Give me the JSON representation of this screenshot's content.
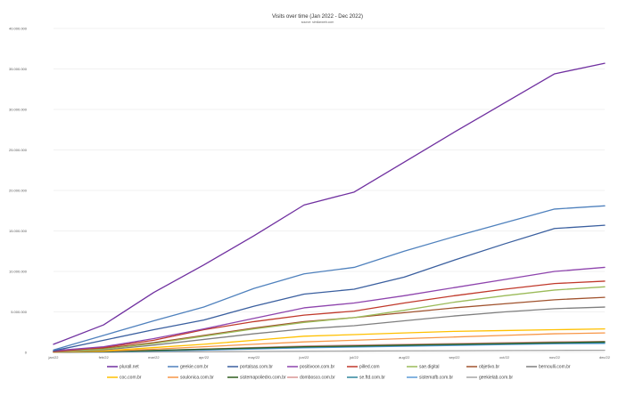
{
  "chart_data": {
    "type": "line",
    "title": "Visits over time (Jan 2022 - Dec 2022)",
    "subtitle": "source: similarweb.com",
    "xlabel": "",
    "ylabel": "",
    "ylim": [
      0,
      40000000
    ],
    "grid": true,
    "legend_position": "bottom",
    "y_ticks": [
      "0",
      "5.000.000",
      "10.000.000",
      "15.000.000",
      "20.000.000",
      "25.000.000",
      "30.000.000",
      "35.000.000",
      "40.000.000"
    ],
    "categories": [
      "jan/22",
      "feb/22",
      "mar/22",
      "apr/22",
      "may/22",
      "jun/22",
      "jul/22",
      "aug/22",
      "sep/22",
      "oct/22",
      "nov/22",
      "dec/22"
    ],
    "series": [
      {
        "name": "plurall.net",
        "color": "#7030a0",
        "values": [
          1000000,
          3400000,
          7400000,
          10800000,
          14400000,
          18200000,
          19800000,
          23500000,
          27200000,
          30800000,
          34400000,
          35700000
        ]
      },
      {
        "name": "geekie.com.br",
        "color": "#4f81bd",
        "values": [
          300000,
          2100000,
          3900000,
          5600000,
          7900000,
          9700000,
          10500000,
          12500000,
          14300000,
          16000000,
          17700000,
          18100000
        ]
      },
      {
        "name": "portalsas.com.br",
        "color": "#3a5f9f",
        "values": [
          200000,
          1500000,
          2800000,
          4000000,
          5700000,
          7200000,
          7800000,
          9300000,
          11400000,
          13400000,
          15300000,
          15700000
        ]
      },
      {
        "name": "positivoon.com.br",
        "color": "#8e44ad",
        "values": [
          200000,
          700000,
          1700000,
          2900000,
          4200000,
          5500000,
          6100000,
          7000000,
          8000000,
          9000000,
          10000000,
          10500000
        ]
      },
      {
        "name": "pilled.com",
        "color": "#c0392b",
        "values": [
          100000,
          600000,
          1500000,
          2800000,
          3800000,
          4600000,
          5100000,
          6100000,
          7000000,
          7800000,
          8500000,
          8800000
        ]
      },
      {
        "name": "sae.digital",
        "color": "#9bbb59",
        "values": [
          100000,
          400000,
          1100000,
          2000000,
          2900000,
          3700000,
          4300000,
          5200000,
          6200000,
          7000000,
          7700000,
          8100000
        ]
      },
      {
        "name": "objetivo.br",
        "color": "#a0522d",
        "values": [
          100000,
          500000,
          1200000,
          2100000,
          3000000,
          3800000,
          4300000,
          4900000,
          5500000,
          6000000,
          6500000,
          6800000
        ]
      },
      {
        "name": "bernoulli.com.br",
        "color": "#7f7f7f",
        "values": [
          50000,
          300000,
          900000,
          1600000,
          2300000,
          2900000,
          3300000,
          3900000,
          4500000,
          5000000,
          5400000,
          5600000
        ]
      },
      {
        "name": "coc.com.br",
        "color": "#ffc000",
        "values": [
          50000,
          200000,
          600000,
          1000000,
          1500000,
          2000000,
          2200000,
          2400000,
          2600000,
          2700000,
          2800000,
          2900000
        ]
      },
      {
        "name": "soulonica.com.br",
        "color": "#f79646",
        "values": [
          30000,
          150000,
          400000,
          700000,
          1000000,
          1300000,
          1500000,
          1700000,
          1900000,
          2100000,
          2300000,
          2400000
        ]
      },
      {
        "name": "sistemapoliedro.com.br",
        "color": "#2e5c1e",
        "values": [
          20000,
          100000,
          250000,
          400000,
          550000,
          700000,
          800000,
          900000,
          1000000,
          1100000,
          1200000,
          1300000
        ]
      },
      {
        "name": "dombosco.com.br",
        "color": "#d99694",
        "values": [
          20000,
          100000,
          250000,
          400000,
          600000,
          800000,
          900000,
          1000000,
          1100000,
          1200000,
          1300000,
          1350000
        ]
      },
      {
        "name": "se.ftd.com.br",
        "color": "#31859c",
        "values": [
          20000,
          80000,
          200000,
          350000,
          500000,
          650000,
          750000,
          850000,
          950000,
          1050000,
          1150000,
          1200000
        ]
      },
      {
        "name": "sistemafb.com.br",
        "color": "#5b9bd5",
        "values": [
          15000,
          60000,
          150000,
          280000,
          420000,
          560000,
          660000,
          760000,
          860000,
          960000,
          1060000,
          1100000
        ]
      },
      {
        "name": "geekielab.com.br",
        "color": "#a5a5a5",
        "values": [
          10000,
          30000,
          60000,
          90000,
          120000,
          150000,
          170000,
          190000,
          210000,
          230000,
          250000,
          260000
        ]
      }
    ]
  }
}
